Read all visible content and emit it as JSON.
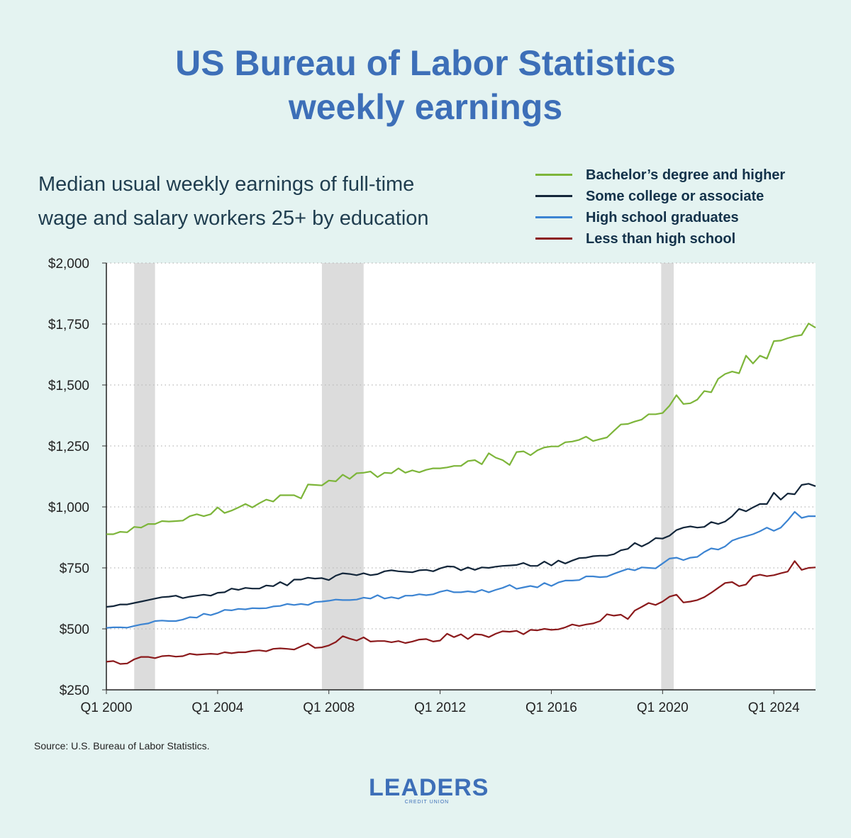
{
  "header": {
    "title_line1": "US Bureau of Labor Statistics",
    "title_line2": "weekly earnings",
    "subtitle_line1": "Median usual weekly earnings of full-time",
    "subtitle_line2": "wage and salary workers 25+ by education"
  },
  "source": "Source: U.S. Bureau of Labor Statistics.",
  "logo": {
    "name": "LEADERS",
    "sub": "CREDIT UNION"
  },
  "chart_data": {
    "type": "line",
    "title": "US Bureau of Labor Statistics weekly earnings",
    "xlabel": "",
    "ylabel": "",
    "xlim": [
      2000.0,
      2025.5
    ],
    "ylim": [
      250,
      2000
    ],
    "x_ticks": [
      {
        "value": 2000,
        "label": "Q1 2000"
      },
      {
        "value": 2004,
        "label": "Q1 2004"
      },
      {
        "value": 2008,
        "label": "Q1 2008"
      },
      {
        "value": 2012,
        "label": "Q1 2012"
      },
      {
        "value": 2016,
        "label": "Q1 2016"
      },
      {
        "value": 2020,
        "label": "Q1 2020"
      },
      {
        "value": 2024,
        "label": "Q1 2024"
      }
    ],
    "y_ticks": [
      {
        "value": 250,
        "label": "$250"
      },
      {
        "value": 500,
        "label": "$500"
      },
      {
        "value": 750,
        "label": "$750"
      },
      {
        "value": 1000,
        "label": "$1,000"
      },
      {
        "value": 1250,
        "label": "$1,250"
      },
      {
        "value": 1500,
        "label": "$1,500"
      },
      {
        "value": 1750,
        "label": "$1,750"
      },
      {
        "value": 2000,
        "label": "$2,000"
      }
    ],
    "recessions": [
      [
        2001.0,
        2001.75
      ],
      [
        2007.75,
        2009.25
      ],
      [
        2019.95,
        2020.4
      ]
    ],
    "x_start": 2000.0,
    "x_step": 0.25,
    "series": [
      {
        "name": "Bachelor’s degree and higher",
        "color": "#7db53a",
        "values": [
          888,
          888,
          898,
          896,
          918,
          915,
          930,
          930,
          942,
          940,
          942,
          944,
          962,
          970,
          962,
          970,
          998,
          975,
          985,
          998,
          1012,
          998,
          1015,
          1030,
          1022,
          1048,
          1048,
          1048,
          1035,
          1092,
          1090,
          1088,
          1108,
          1105,
          1132,
          1115,
          1138,
          1140,
          1145,
          1122,
          1140,
          1138,
          1158,
          1140,
          1150,
          1142,
          1152,
          1158,
          1158,
          1162,
          1168,
          1168,
          1188,
          1192,
          1175,
          1220,
          1202,
          1192,
          1172,
          1225,
          1228,
          1212,
          1232,
          1244,
          1248,
          1248,
          1265,
          1268,
          1275,
          1288,
          1270,
          1278,
          1285,
          1312,
          1338,
          1340,
          1350,
          1358,
          1380,
          1380,
          1385,
          1415,
          1458,
          1422,
          1425,
          1440,
          1475,
          1470,
          1525,
          1545,
          1555,
          1548,
          1620,
          1588,
          1620,
          1608,
          1680,
          1682,
          1692,
          1700,
          1705,
          1752,
          1735
        ]
      },
      {
        "name": "Some college or associate",
        "color": "#13263a",
        "values": [
          590,
          593,
          600,
          600,
          606,
          612,
          618,
          624,
          630,
          632,
          636,
          626,
          632,
          636,
          640,
          636,
          648,
          650,
          665,
          660,
          668,
          665,
          665,
          678,
          675,
          692,
          678,
          702,
          702,
          710,
          706,
          708,
          700,
          718,
          728,
          725,
          720,
          728,
          720,
          724,
          736,
          740,
          736,
          734,
          732,
          740,
          742,
          736,
          748,
          756,
          755,
          740,
          752,
          742,
          752,
          750,
          755,
          758,
          760,
          762,
          770,
          758,
          758,
          776,
          760,
          780,
          768,
          780,
          790,
          792,
          798,
          800,
          800,
          806,
          822,
          828,
          852,
          838,
          852,
          872,
          870,
          882,
          905,
          915,
          920,
          915,
          918,
          938,
          930,
          940,
          962,
          992,
          982,
          998,
          1012,
          1012,
          1058,
          1030,
          1055,
          1052,
          1090,
          1095,
          1085
        ]
      },
      {
        "name": "High school graduates",
        "color": "#3c84d2",
        "values": [
          504,
          506,
          506,
          505,
          512,
          518,
          522,
          532,
          534,
          532,
          532,
          538,
          548,
          546,
          562,
          556,
          565,
          578,
          576,
          582,
          580,
          585,
          584,
          585,
          592,
          594,
          602,
          598,
          602,
          598,
          610,
          612,
          615,
          620,
          618,
          618,
          620,
          628,
          624,
          638,
          624,
          630,
          624,
          636,
          636,
          642,
          638,
          642,
          652,
          658,
          650,
          650,
          654,
          650,
          660,
          650,
          660,
          668,
          680,
          664,
          670,
          676,
          670,
          688,
          676,
          690,
          698,
          698,
          700,
          715,
          715,
          712,
          714,
          726,
          736,
          746,
          740,
          752,
          750,
          748,
          768,
          788,
          792,
          782,
          792,
          795,
          815,
          830,
          825,
          838,
          862,
          872,
          880,
          888,
          900,
          915,
          902,
          915,
          945,
          980,
          955,
          962,
          962
        ]
      },
      {
        "name": "Less than high school",
        "color": "#8b1a1c",
        "values": [
          365,
          368,
          356,
          358,
          375,
          385,
          385,
          380,
          388,
          390,
          386,
          388,
          398,
          394,
          396,
          398,
          396,
          404,
          400,
          404,
          404,
          410,
          412,
          408,
          418,
          420,
          418,
          415,
          428,
          440,
          422,
          424,
          432,
          446,
          470,
          460,
          452,
          465,
          448,
          450,
          450,
          445,
          450,
          442,
          448,
          456,
          458,
          448,
          452,
          480,
          466,
          478,
          458,
          478,
          476,
          466,
          480,
          490,
          488,
          492,
          478,
          496,
          494,
          500,
          496,
          498,
          506,
          518,
          512,
          518,
          522,
          532,
          560,
          554,
          558,
          540,
          575,
          590,
          606,
          598,
          612,
          632,
          640,
          608,
          612,
          618,
          630,
          648,
          668,
          688,
          692,
          675,
          682,
          715,
          722,
          716,
          720,
          728,
          735,
          778,
          742,
          750,
          752
        ]
      }
    ]
  }
}
